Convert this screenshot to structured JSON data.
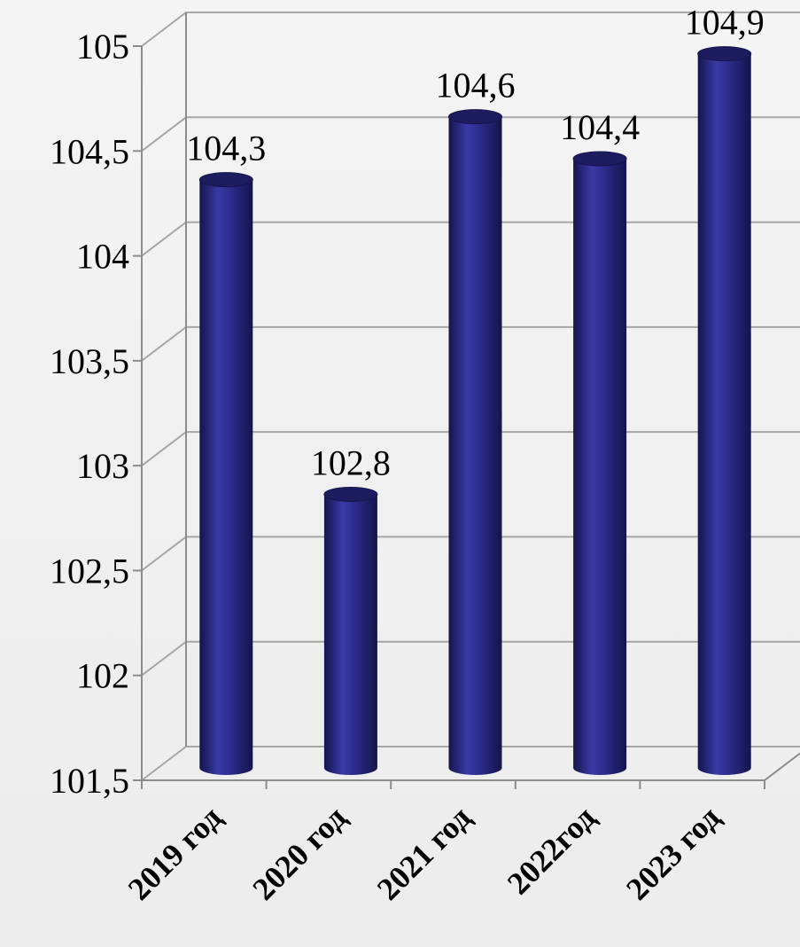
{
  "colors": {
    "bar_body": "#2a2a85",
    "bar_edge_dark": "#15154e",
    "bar_highlight": "#3d3db0",
    "bar_top": "#1c1c5e",
    "grid": "#a6a6a6",
    "background": "#f2f2f2"
  },
  "chart_data": {
    "type": "bar",
    "style": "3d-cylinder",
    "categories": [
      "2019 год",
      "2020 год",
      "2021 год",
      "2022год",
      "2023 год"
    ],
    "values": [
      104.3,
      102.8,
      104.6,
      104.4,
      104.9
    ],
    "value_labels": [
      "104,3",
      "102,8",
      "104,6",
      "104,4",
      "104,9"
    ],
    "y_ticks": [
      101.5,
      102,
      102.5,
      103,
      103.5,
      104,
      104.5,
      105
    ],
    "y_tick_labels": [
      "101,5",
      "102",
      "102,5",
      "103",
      "103,5",
      "104",
      "104,5",
      "105"
    ],
    "ylim": [
      101.5,
      105
    ],
    "grid": true,
    "legend": false,
    "title": "",
    "xlabel": "",
    "ylabel": ""
  }
}
